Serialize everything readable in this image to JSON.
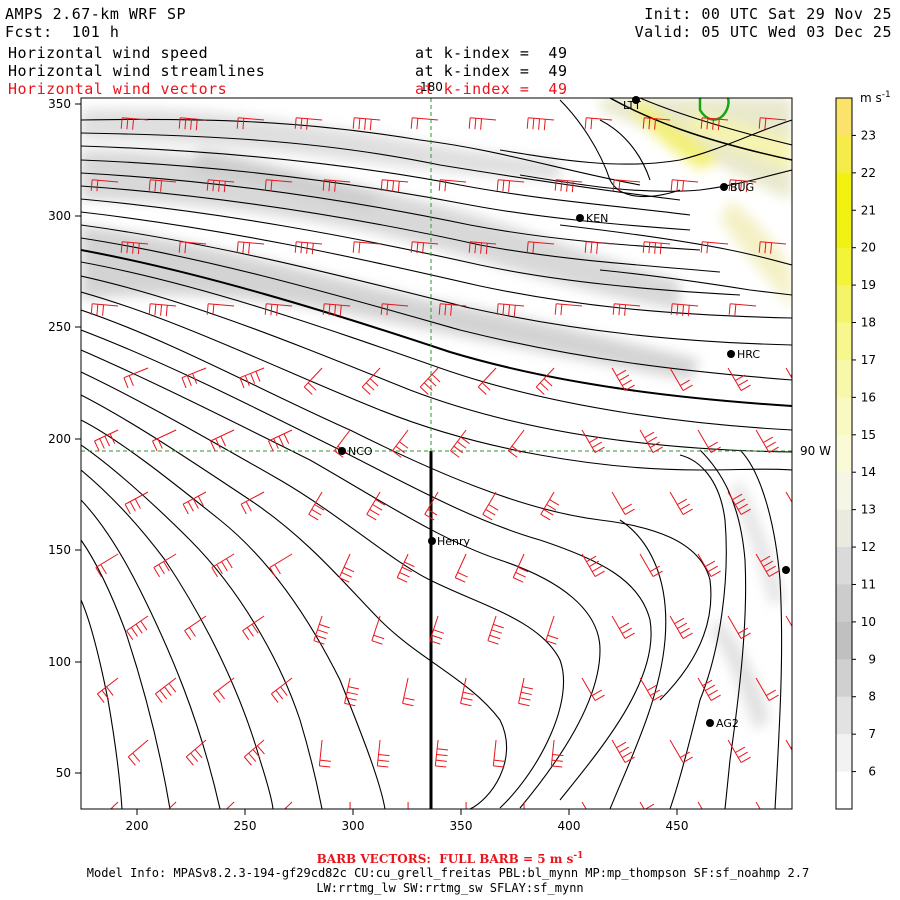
{
  "header": {
    "model_title": "AMPS 2.67-km WRF SP",
    "forecast": "Fcst:  101 h",
    "init": "Init: 00 UTC Sat 29 Nov 25",
    "valid": "Valid: 05 UTC Wed 03 Dec 25",
    "fields": [
      {
        "name": "Horizontal wind speed",
        "level": "at k-index =  49",
        "color": "#000000"
      },
      {
        "name": "Horizontal wind streamlines",
        "level": "at k-index =  49",
        "color": "#000000"
      },
      {
        "name": "Horizontal wind vectors",
        "level": "at k-index =  49",
        "color": "#e8141c"
      }
    ]
  },
  "map": {
    "x_ticks": [
      "200",
      "250",
      "300",
      "350",
      "400",
      "450"
    ],
    "y_ticks": [
      "50",
      "100",
      "150",
      "200",
      "250",
      "300",
      "350"
    ],
    "meridian_label": "180",
    "parallel_label": "90 W",
    "stations": [
      {
        "id": "NCO"
      },
      {
        "id": "Henry"
      },
      {
        "id": "KEN"
      },
      {
        "id": "BUG"
      },
      {
        "id": "HRC"
      },
      {
        "id": "AG2"
      },
      {
        "id": "LTT"
      },
      {
        "id": ""
      }
    ],
    "barb_color": "#e8141c",
    "streamline_color": "#000000",
    "meridian_color": "#2a9a2a"
  },
  "colorbar": {
    "units": "m s",
    "units_exp": "-1",
    "labels": [
      "23",
      "22",
      "21",
      "20",
      "19",
      "18",
      "17",
      "16",
      "15",
      "14",
      "13",
      "12",
      "11",
      "10",
      "9",
      "8",
      "7",
      "6"
    ],
    "colors": [
      "#fbe36b",
      "#f5ec4a",
      "#f3f20f",
      "#f1f214",
      "#f3f43a",
      "#f4f46a",
      "#f7f78e",
      "#f8f8aa",
      "#f9f9c2",
      "#fafad6",
      "#f6f6e6",
      "#eaeae0",
      "#dadada",
      "#cccccc",
      "#c0c0c0",
      "#d0d0d0",
      "#e2e2e2",
      "#f2f2f2",
      "#ffffff"
    ]
  },
  "footer": {
    "barb_note": "BARB VECTORS:  FULL BARB = 5 m s",
    "barb_note_exp": "-1",
    "model_info_line1": "Model Info: MPASv8.2.3-194-gf29cd82c CU:cu_grell_freitas PBL:bl_mynn MP:mp_thompson SF:sf_noahmp 2.7",
    "model_info_line2": "LW:rrtmg_lw SW:rrtmg_sw SFLAY:sf_mynn"
  }
}
